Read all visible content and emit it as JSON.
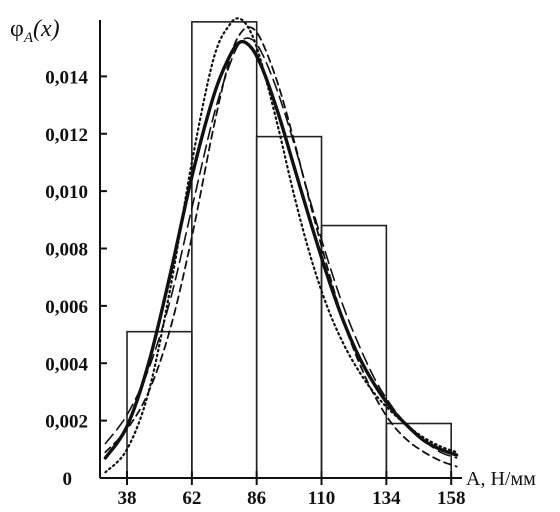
{
  "chart_data": {
    "type": "line",
    "ylabel": {
      "main": "φ",
      "sub": "A",
      "arg": "(x)"
    },
    "xlabel": "A, Н/мм",
    "xlim": [
      28,
      162
    ],
    "ylim": [
      0,
      0.016
    ],
    "x_ticks": [
      38,
      62,
      86,
      110,
      134,
      158
    ],
    "y_ticks": [
      {
        "value": 0,
        "label": "0"
      },
      {
        "value": 0.002,
        "label": "0,002"
      },
      {
        "value": 0.004,
        "label": "0,004"
      },
      {
        "value": 0.006,
        "label": "0,006"
      },
      {
        "value": 0.008,
        "label": "0,008"
      },
      {
        "value": 0.01,
        "label": "0,010"
      },
      {
        "value": 0.012,
        "label": "0,012"
      },
      {
        "value": 0.014,
        "label": "0,014"
      }
    ],
    "histogram": {
      "edges": [
        38,
        62,
        86,
        110,
        134,
        158
      ],
      "values": [
        0.0051,
        0.0159,
        0.0119,
        0.0088,
        0.0019
      ]
    },
    "series": [
      {
        "style": "solid",
        "x": [
          30,
          38,
          46,
          54,
          62,
          70,
          76,
          80,
          84,
          88,
          94,
          100,
          106,
          112,
          118,
          124,
          130,
          136,
          142,
          148,
          154,
          160
        ],
        "y": [
          0.0007,
          0.0018,
          0.004,
          0.0071,
          0.0105,
          0.0133,
          0.0147,
          0.0152,
          0.015,
          0.0143,
          0.0127,
          0.0108,
          0.0089,
          0.0071,
          0.0055,
          0.0042,
          0.0032,
          0.0024,
          0.0018,
          0.0013,
          0.001,
          0.0008
        ]
      },
      {
        "style": "dashed",
        "x": [
          30,
          38,
          46,
          54,
          62,
          70,
          76,
          80,
          84,
          88,
          94,
          100,
          106,
          112,
          118,
          124,
          130,
          136,
          142,
          148,
          154,
          160
        ],
        "y": [
          0.0009,
          0.0017,
          0.003,
          0.0052,
          0.0084,
          0.0122,
          0.0146,
          0.0155,
          0.0157,
          0.0152,
          0.0137,
          0.0117,
          0.0095,
          0.0074,
          0.0055,
          0.004,
          0.0028,
          0.0019,
          0.0013,
          0.0009,
          0.0006,
          0.0004
        ]
      },
      {
        "style": "dotted",
        "x": [
          30,
          38,
          46,
          54,
          62,
          70,
          76,
          80,
          84,
          88,
          94,
          100,
          106,
          112,
          118,
          124,
          130,
          136,
          142,
          148,
          154,
          160
        ],
        "y": [
          0.0002,
          0.001,
          0.003,
          0.0066,
          0.011,
          0.0146,
          0.0158,
          0.016,
          0.0155,
          0.0144,
          0.0122,
          0.0098,
          0.0077,
          0.006,
          0.0047,
          0.0037,
          0.0029,
          0.0023,
          0.0018,
          0.0014,
          0.0011,
          0.0009
        ]
      },
      {
        "style": "long-dash",
        "x": [
          30,
          38,
          46,
          54,
          62,
          70,
          76,
          80,
          84,
          88,
          94,
          100,
          106,
          112,
          118,
          124,
          130,
          136,
          142,
          148,
          154,
          160
        ],
        "y": [
          0.0012,
          0.0022,
          0.0038,
          0.0062,
          0.0094,
          0.0126,
          0.0144,
          0.0152,
          0.0153,
          0.0148,
          0.0134,
          0.0116,
          0.0096,
          0.0077,
          0.006,
          0.0046,
          0.0034,
          0.0025,
          0.0018,
          0.0013,
          0.0009,
          0.0007
        ]
      }
    ],
    "grid": false
  }
}
